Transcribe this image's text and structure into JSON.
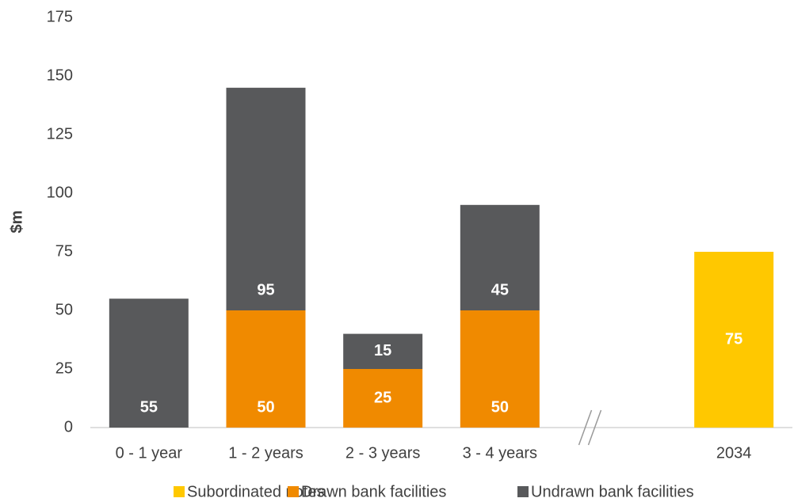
{
  "chart_data": {
    "type": "stacked_bar",
    "y_label": "$m",
    "categories": [
      "0 - 1 year",
      "1 - 2 years",
      "2 - 3 years",
      "3 - 4 years",
      null,
      "2034"
    ],
    "series": [
      {
        "name": "Subordinated notes",
        "color": "#ffc800",
        "values": [
          null,
          null,
          null,
          null,
          null,
          75
        ]
      },
      {
        "name": "Drawn bank facilities",
        "color": "#f08a00",
        "values": [
          null,
          50,
          25,
          50,
          null,
          null
        ]
      },
      {
        "name": "Undrawn bank facilities",
        "color": "#58595b",
        "values": [
          55,
          95,
          15,
          45,
          null,
          null
        ]
      }
    ],
    "stack_order": [
      1,
      2,
      0
    ],
    "ylim": [
      0,
      175
    ],
    "yticks": [
      0,
      25,
      50,
      75,
      100,
      125,
      150,
      175
    ],
    "grid": false,
    "legend": "bottom",
    "data_labels": true
  }
}
